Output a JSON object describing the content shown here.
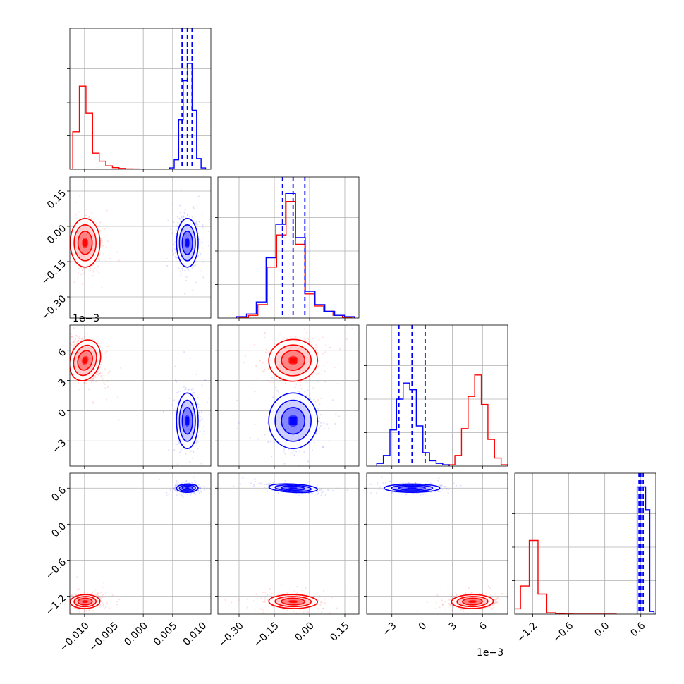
{
  "chart_data": {
    "type": "corner",
    "grid": true,
    "series": [
      {
        "name": "",
        "color": "#ff0000",
        "means": [
          -0.0099,
          -0.07,
          0.005,
          -1.29
        ],
        "stds": [
          0.0011,
          0.045,
          0.0009,
          0.05
        ],
        "correlations": [
          [
            0,
            1,
            0.0
          ],
          [
            0,
            2,
            -0.5
          ],
          [
            0,
            3,
            0.1
          ],
          [
            1,
            2,
            0.1
          ],
          [
            1,
            3,
            -0.1
          ],
          [
            2,
            3,
            0.1
          ]
        ],
        "hist_weights": [
          [
            0.28,
            0.62,
            0.42,
            0.12,
            0.06,
            0.025,
            0.012,
            0.006,
            0.003,
            0.002,
            0.001,
            0.0
          ],
          [
            0.005,
            0.02,
            0.1,
            0.38,
            0.62,
            0.87,
            0.55,
            0.18,
            0.09,
            0.05,
            0.02,
            0.005
          ],
          [
            0.01,
            0.08,
            0.28,
            0.52,
            0.68,
            0.46,
            0.2,
            0.06,
            0.01
          ],
          [
            0.04,
            0.21,
            0.55,
            0.15,
            0.01,
            0.003,
            0.001,
            0.0,
            0.0,
            0.0,
            0.0,
            0.0
          ]
        ]
      },
      {
        "name": "",
        "color": "#0000ff",
        "means": [
          0.0075,
          -0.07,
          -0.001,
          0.6
        ],
        "stds": [
          0.0008,
          0.045,
          0.0012,
          0.03
        ],
        "correlations": [
          [
            0,
            1,
            0.0
          ],
          [
            0,
            2,
            0.0
          ],
          [
            0,
            3,
            0.1
          ],
          [
            1,
            2,
            0.0
          ],
          [
            1,
            3,
            -0.6
          ],
          [
            2,
            3,
            0.0
          ]
        ],
        "quantiles": [
          [
            0.0066,
            0.0075,
            0.0083
          ],
          [
            -0.115,
            -0.07,
            -0.02
          ],
          [
            -0.0023,
            -0.001,
            0.0003
          ],
          [
            0.57,
            0.6,
            0.64
          ]
        ],
        "hist_weights": [
          [
            0.01,
            0.07,
            0.37,
            0.66,
            0.79,
            0.44,
            0.08,
            0.01
          ],
          [
            0.01,
            0.03,
            0.12,
            0.45,
            0.7,
            0.93,
            0.6,
            0.2,
            0.1,
            0.05,
            0.02,
            0.01
          ],
          [
            0.02,
            0.08,
            0.27,
            0.5,
            0.62,
            0.57,
            0.3,
            0.1,
            0.04,
            0.02,
            0.01
          ],
          [
            0.95,
            0.95,
            0.78,
            0.02
          ]
        ]
      }
    ],
    "parameters": [
      {
        "hist_range": [
          -0.012,
          0.0115
        ],
        "axis_range": [
          -0.0125,
          0.0115
        ],
        "ticks": [
          -0.01,
          -0.005,
          0.0,
          0.005,
          0.01
        ],
        "tick_labels": [
          "−0.010",
          "−0.005",
          "0.000",
          "0.005",
          "0.010"
        ],
        "offset": ""
      },
      {
        "hist_range": [
          -0.36,
          0.21
        ],
        "axis_range": [
          -0.39,
          0.21
        ],
        "ticks": [
          -0.3,
          -0.15,
          0.0,
          0.15
        ],
        "tick_labels": [
          "−0.30",
          "−0.15",
          "0.00",
          "0.15"
        ],
        "offset": ""
      },
      {
        "hist_range": [
          -0.0055,
          0.0085
        ],
        "axis_range": [
          -0.0055,
          0.0085
        ],
        "ticks": [
          -0.003,
          0.0,
          0.003,
          0.006
        ],
        "tick_labels": [
          "−3",
          "0",
          "3",
          "6"
        ],
        "offset": "1e−3"
      },
      {
        "hist_range": [
          -1.55,
          0.85
        ],
        "axis_range": [
          -1.5,
          0.85
        ],
        "ticks": [
          -1.2,
          -0.6,
          0.0,
          0.6
        ],
        "tick_labels": [
          "−1.2",
          "−0.6",
          "0.0",
          "0.6"
        ],
        "offset": ""
      }
    ]
  }
}
